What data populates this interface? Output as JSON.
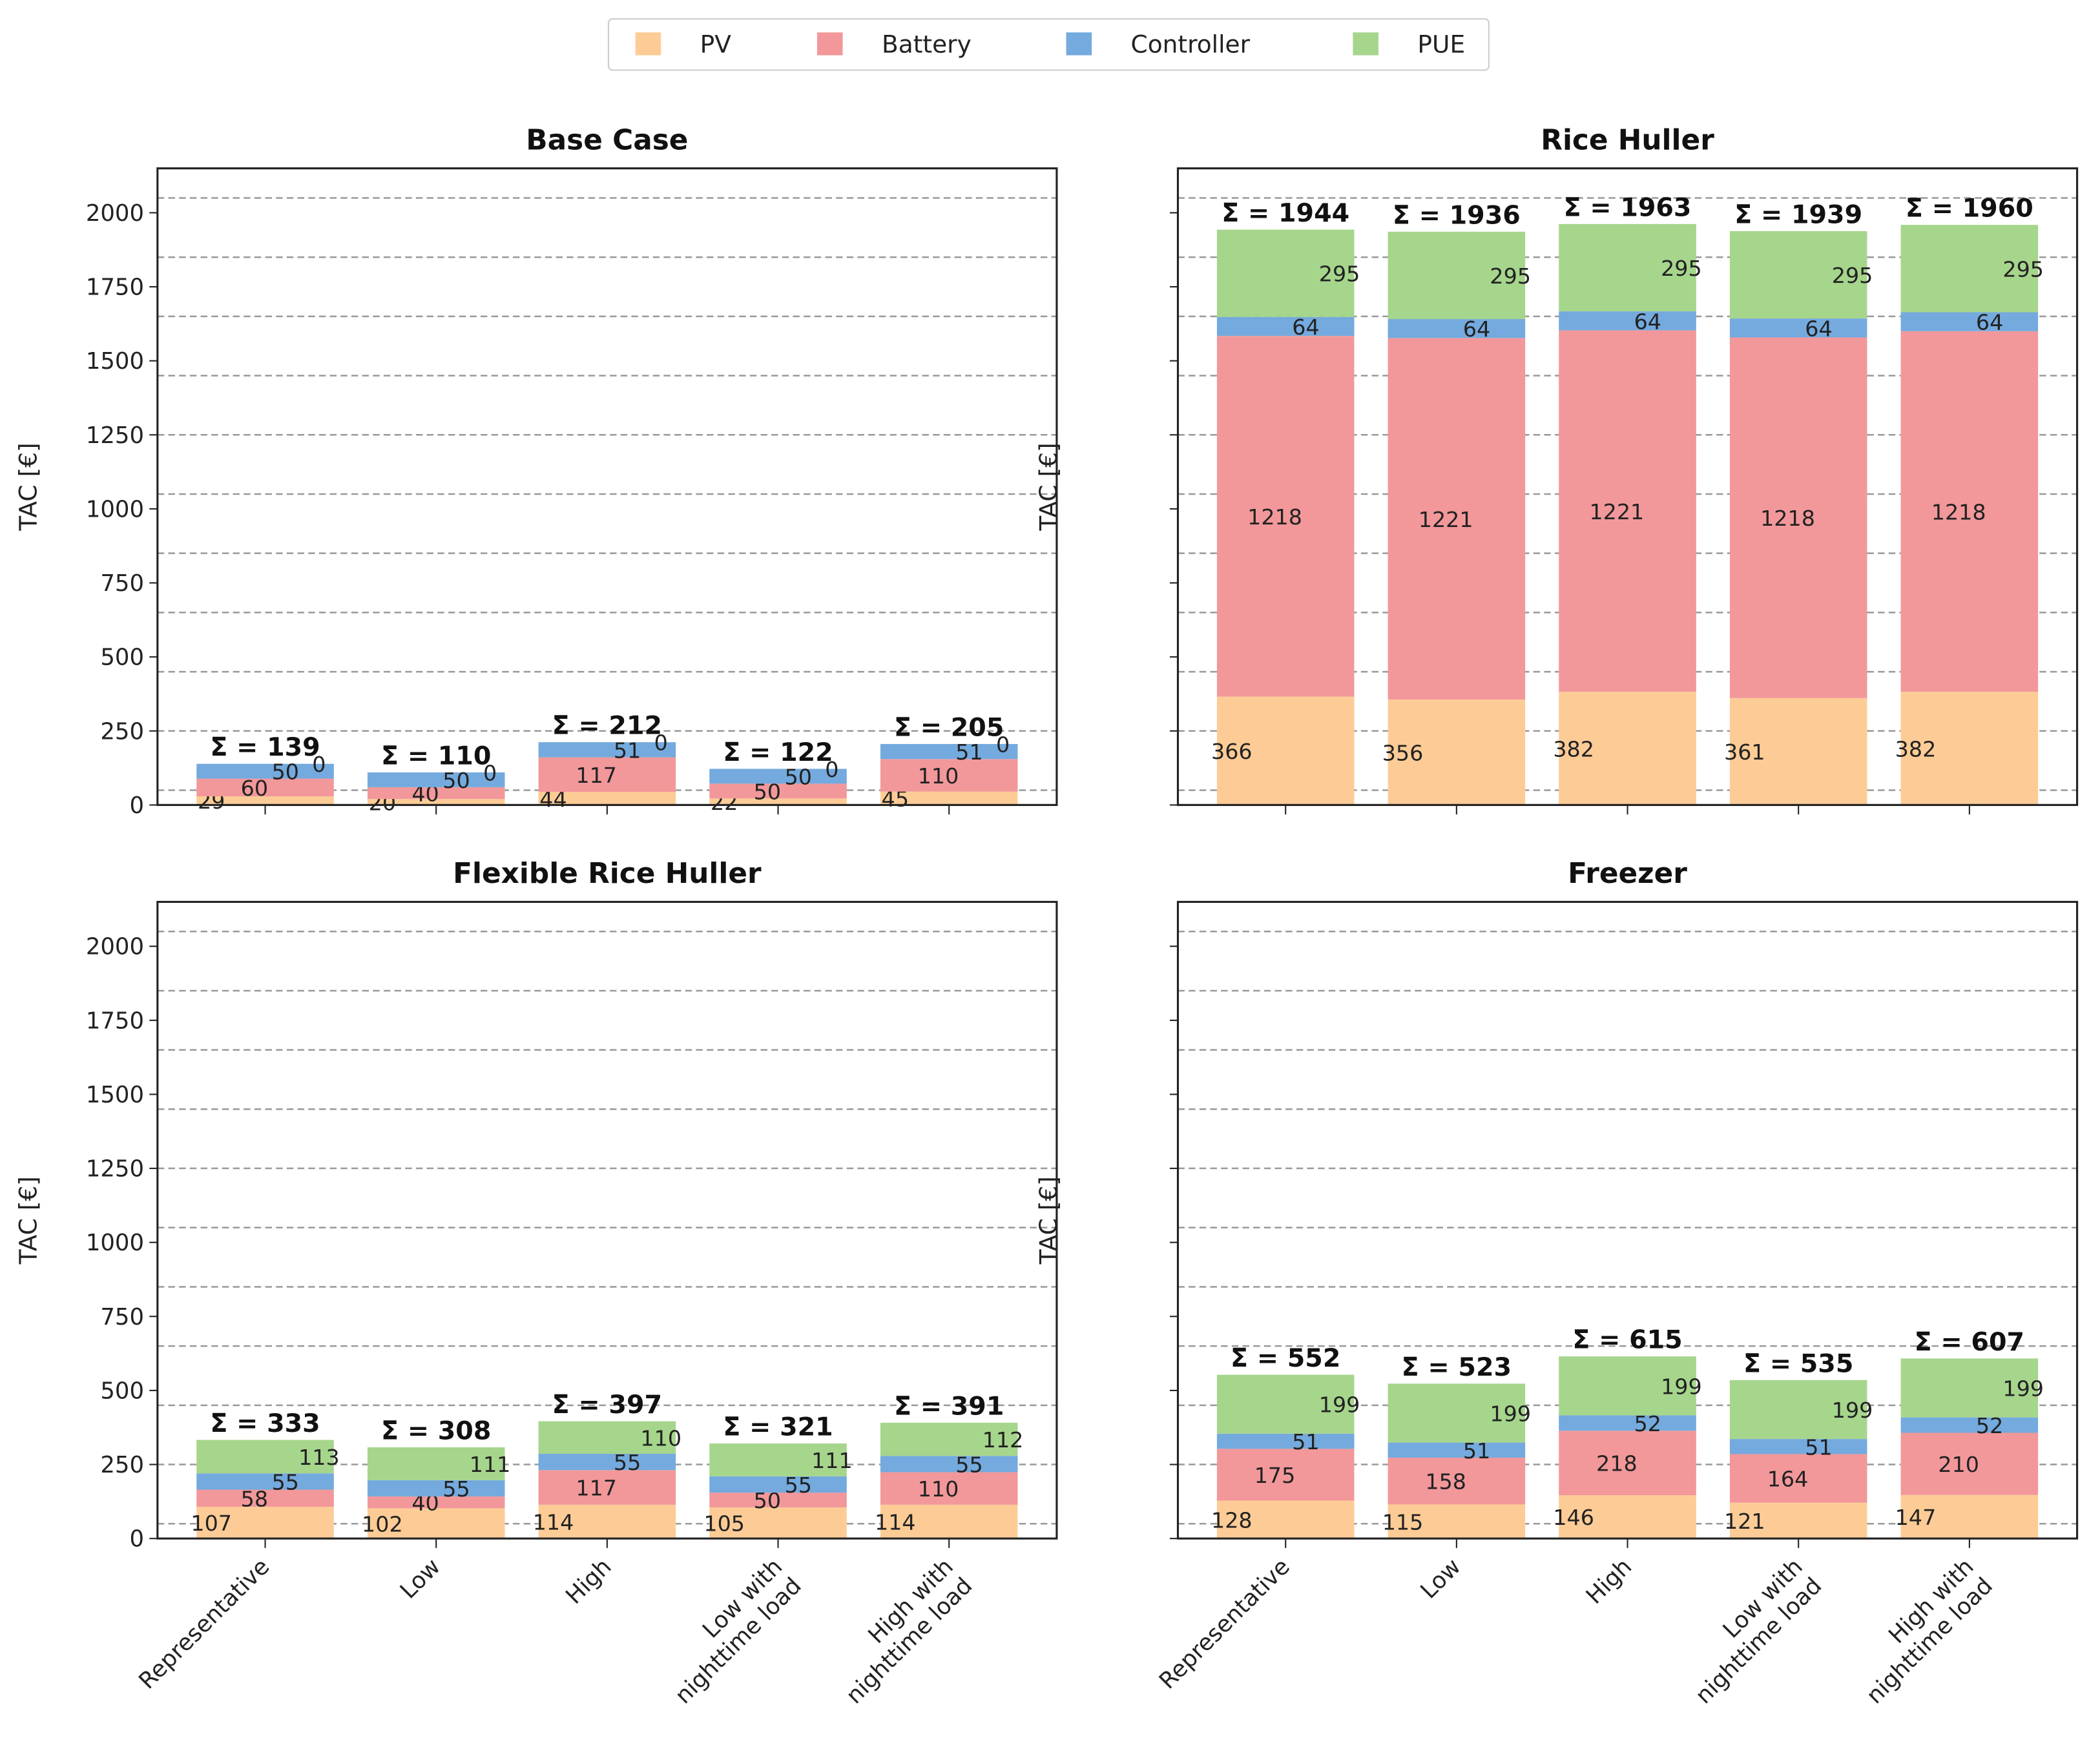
{
  "chart_data": [
    {
      "type": "bar",
      "stacked": true,
      "title": "Base Case",
      "ylabel": "TAC [€]",
      "ylim": [
        0,
        2150
      ],
      "categories": [
        "Representative",
        "Low",
        "High",
        "Low with\nnighttime load",
        "High with\nnighttime load"
      ],
      "series": [
        {
          "name": "PV",
          "values": [
            29,
            20,
            44,
            22,
            45
          ]
        },
        {
          "name": "Battery",
          "values": [
            60,
            40,
            117,
            50,
            110
          ]
        },
        {
          "name": "Controller",
          "values": [
            50,
            50,
            51,
            50,
            51
          ]
        },
        {
          "name": "PUE",
          "values": [
            0,
            0,
            0,
            0,
            0
          ]
        }
      ],
      "sums": [
        "Σ = 139",
        "Σ = 110",
        "Σ = 212",
        "Σ = 122",
        "Σ = 205"
      ]
    },
    {
      "type": "bar",
      "stacked": true,
      "title": "Rice Huller",
      "ylabel": "TAC [€]",
      "ylim": [
        0,
        2150
      ],
      "categories": [
        "Representative",
        "Low",
        "High",
        "Low with\nnighttime load",
        "High with\nnighttime load"
      ],
      "series": [
        {
          "name": "PV",
          "values": [
            366,
            356,
            382,
            361,
            382
          ]
        },
        {
          "name": "Battery",
          "values": [
            1218,
            1221,
            1221,
            1218,
            1218
          ]
        },
        {
          "name": "Controller",
          "values": [
            64,
            64,
            64,
            64,
            64
          ]
        },
        {
          "name": "PUE",
          "values": [
            295,
            295,
            295,
            295,
            295
          ]
        }
      ],
      "sums": [
        "Σ = 1944",
        "Σ = 1936",
        "Σ = 1963",
        "Σ = 1939",
        "Σ = 1960"
      ]
    },
    {
      "type": "bar",
      "stacked": true,
      "title": "Flexible Rice Huller",
      "ylabel": "TAC [€]",
      "ylim": [
        0,
        2150
      ],
      "categories": [
        "Representative",
        "Low",
        "High",
        "Low with\nnighttime load",
        "High with\nnighttime load"
      ],
      "series": [
        {
          "name": "PV",
          "values": [
            107,
            102,
            114,
            105,
            114
          ]
        },
        {
          "name": "Battery",
          "values": [
            58,
            40,
            117,
            50,
            110
          ]
        },
        {
          "name": "Controller",
          "values": [
            55,
            55,
            55,
            55,
            55
          ]
        },
        {
          "name": "PUE",
          "values": [
            113,
            111,
            110,
            111,
            112
          ]
        }
      ],
      "sums": [
        "Σ = 333",
        "Σ = 308",
        "Σ = 397",
        "Σ = 321",
        "Σ = 391"
      ]
    },
    {
      "type": "bar",
      "stacked": true,
      "title": "Freezer",
      "ylabel": "TAC [€]",
      "ylim": [
        0,
        2150
      ],
      "categories": [
        "Representative",
        "Low",
        "High",
        "Low with\nnighttime load",
        "High with\nnighttime load"
      ],
      "series": [
        {
          "name": "PV",
          "values": [
            128,
            115,
            146,
            121,
            147
          ]
        },
        {
          "name": "Battery",
          "values": [
            175,
            158,
            218,
            164,
            210
          ]
        },
        {
          "name": "Controller",
          "values": [
            51,
            51,
            52,
            51,
            52
          ]
        },
        {
          "name": "PUE",
          "values": [
            199,
            199,
            199,
            199,
            199
          ]
        }
      ],
      "sums": [
        "Σ = 552",
        "Σ = 523",
        "Σ = 615",
        "Σ = 535",
        "Σ = 607"
      ]
    }
  ],
  "yticks": [
    0,
    250,
    500,
    750,
    1000,
    1250,
    1500,
    1750,
    2000
  ],
  "gridlines": [
    50,
    250,
    450,
    650,
    850,
    1050,
    1250,
    1450,
    1650,
    1850,
    2050
  ],
  "legend": {
    "position": "top-center",
    "items": [
      "PV",
      "Battery",
      "Controller",
      "PUE"
    ]
  },
  "colors": {
    "PV": "#fdcc96",
    "Battery": "#f2989a",
    "Controller": "#74aade",
    "PUE": "#a6d58c"
  }
}
